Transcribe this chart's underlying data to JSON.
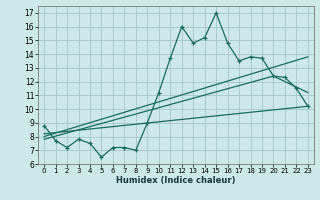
{
  "title": "",
  "xlabel": "Humidex (Indice chaleur)",
  "ylabel": "",
  "bg_color": "#cce8e8",
  "grid_color": "#aacccc",
  "line_color": "#1a6b5a",
  "xlim": [
    -0.5,
    23.5
  ],
  "ylim": [
    6,
    17.5
  ],
  "xticks": [
    0,
    1,
    2,
    3,
    4,
    5,
    6,
    7,
    8,
    9,
    10,
    11,
    12,
    13,
    14,
    15,
    16,
    17,
    18,
    19,
    20,
    21,
    22,
    23
  ],
  "yticks": [
    6,
    7,
    8,
    9,
    10,
    11,
    12,
    13,
    14,
    15,
    16,
    17
  ],
  "series1_x": [
    0,
    1,
    2,
    3,
    4,
    5,
    6,
    7,
    8,
    9,
    10,
    11,
    12,
    13,
    14,
    15,
    16,
    17,
    18,
    19,
    20,
    21,
    22,
    23
  ],
  "series1_y": [
    8.8,
    7.7,
    7.2,
    7.8,
    7.5,
    6.5,
    7.2,
    7.2,
    7.0,
    9.0,
    11.2,
    13.7,
    16.0,
    14.8,
    15.2,
    17.0,
    14.8,
    13.5,
    13.8,
    13.7,
    12.4,
    12.3,
    11.5,
    10.2
  ],
  "series2_x": [
    0,
    23
  ],
  "series2_y": [
    8.2,
    10.2
  ],
  "series3_x": [
    0,
    23
  ],
  "series3_y": [
    8.0,
    13.8
  ],
  "series4_x": [
    0,
    20,
    23
  ],
  "series4_y": [
    7.8,
    12.4,
    11.2
  ]
}
